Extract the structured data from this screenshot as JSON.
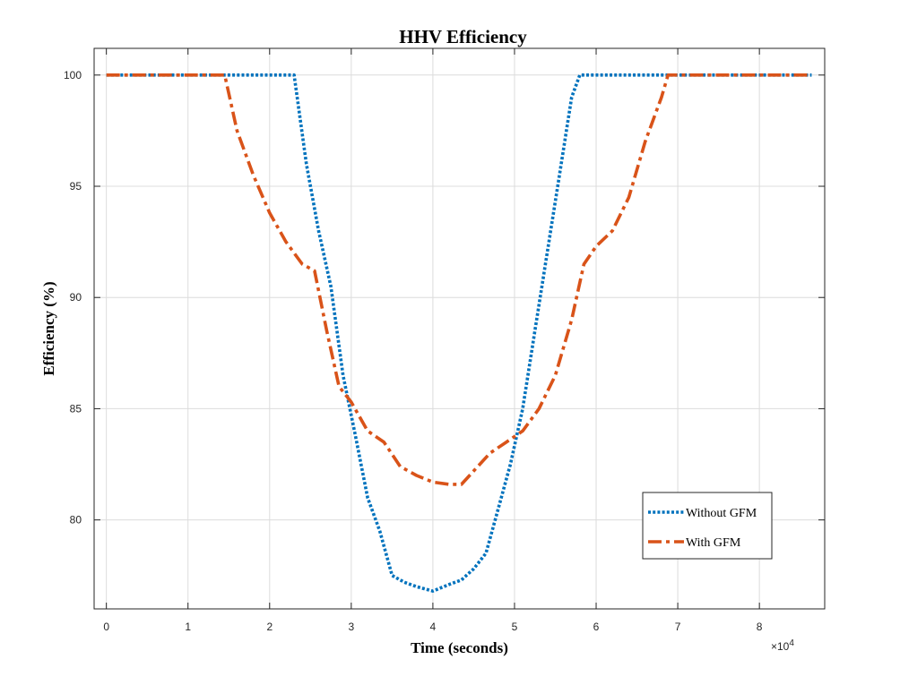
{
  "chart_data": {
    "type": "line",
    "title": "HHV Efficiency",
    "xlabel": "Time (seconds)",
    "ylabel": "Efficiency (%)",
    "x_exponent_label": "×10",
    "x_exponent_power": "4",
    "xlim": [
      -1500,
      88000
    ],
    "ylim": [
      76,
      101.2
    ],
    "xticks": [
      0,
      10000,
      20000,
      30000,
      40000,
      50000,
      60000,
      70000,
      80000
    ],
    "xtick_labels": [
      "0",
      "1",
      "2",
      "3",
      "4",
      "5",
      "6",
      "7",
      "8"
    ],
    "yticks": [
      80,
      85,
      90,
      95,
      100
    ],
    "ytick_labels": [
      "80",
      "85",
      "90",
      "95",
      "100"
    ],
    "grid": true,
    "legend_position": "lower-right",
    "series": [
      {
        "name": "Without GFM",
        "color": "#0072bd",
        "dash": "dotted",
        "x": [
          0,
          5000,
          10000,
          15000,
          20000,
          23000,
          24500,
          26000,
          27500,
          29000,
          30500,
          32000,
          33500,
          35000,
          36500,
          38000,
          40000,
          42000,
          43500,
          45000,
          46500,
          48000,
          49500,
          51000,
          52500,
          54000,
          55500,
          57000,
          58000,
          59000,
          62000,
          66000,
          70000,
          75000,
          80000,
          86400
        ],
        "y": [
          100,
          100,
          100,
          100,
          100,
          100,
          96.0,
          93.0,
          90.5,
          86.5,
          83.8,
          81.0,
          79.5,
          77.5,
          77.2,
          77.0,
          76.8,
          77.1,
          77.3,
          77.8,
          78.5,
          80.5,
          82.5,
          85.0,
          88.5,
          92.0,
          95.5,
          99.0,
          100,
          100,
          100,
          100,
          100,
          100,
          100,
          100
        ]
      },
      {
        "name": "With GFM",
        "color": "#d95319",
        "dash": "dashdot",
        "x": [
          0,
          5000,
          10000,
          14500,
          16000,
          18000,
          20000,
          22000,
          24000,
          25500,
          27000,
          28500,
          30000,
          32000,
          34000,
          36000,
          38000,
          40000,
          42000,
          43500,
          45000,
          47000,
          49000,
          51000,
          53000,
          55000,
          57000,
          58500,
          60000,
          62000,
          64000,
          66000,
          68000,
          68800,
          72000,
          76000,
          80000,
          86400
        ],
        "y": [
          100,
          100,
          100,
          100,
          97.5,
          95.5,
          93.8,
          92.5,
          91.5,
          91.2,
          88.5,
          86.0,
          85.3,
          84.0,
          83.5,
          82.4,
          82.0,
          81.7,
          81.6,
          81.6,
          82.2,
          83.0,
          83.5,
          84.0,
          85.0,
          86.5,
          89.0,
          91.5,
          92.3,
          93.0,
          94.5,
          97.0,
          99.0,
          100,
          100,
          100,
          100,
          100
        ]
      }
    ]
  }
}
